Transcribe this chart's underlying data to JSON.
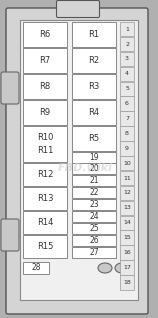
{
  "fig_bg": "#b0b0b0",
  "outer_fill": "#d4d4d4",
  "outer_edge": "#555555",
  "inner_fill": "#f0f0f0",
  "inner_edge": "#888888",
  "box_fill": "#ffffff",
  "box_edge": "#888888",
  "slot_fill": "#e8e8e8",
  "slot_edge": "#999999",
  "connector_fill": "#c8c8c8",
  "connector_edge": "#666666",
  "text_color": "#333333",
  "watermark": "FBD.wiki",
  "watermark_color": "#cccccc",
  "relays_left": [
    "R6",
    "R7",
    "R8",
    "R9"
  ],
  "relays_right_top": [
    "R1",
    "R2",
    "R3",
    "R4",
    "R5"
  ],
  "r10_label": "R10",
  "r11_label": "R11",
  "r12_to_r15": [
    "R12",
    "R13",
    "R14",
    "R15"
  ],
  "fuse19": "19",
  "fuses_small": [
    "20",
    "21",
    "22",
    "23",
    "24",
    "25",
    "26",
    "27"
  ],
  "fuse28": "28",
  "slot_numbers": [
    "1",
    "2",
    "3",
    "4",
    "5",
    "6",
    "7",
    "8",
    "9",
    "10",
    "11",
    "12",
    "13",
    "14",
    "15",
    "16",
    "17",
    "18"
  ]
}
